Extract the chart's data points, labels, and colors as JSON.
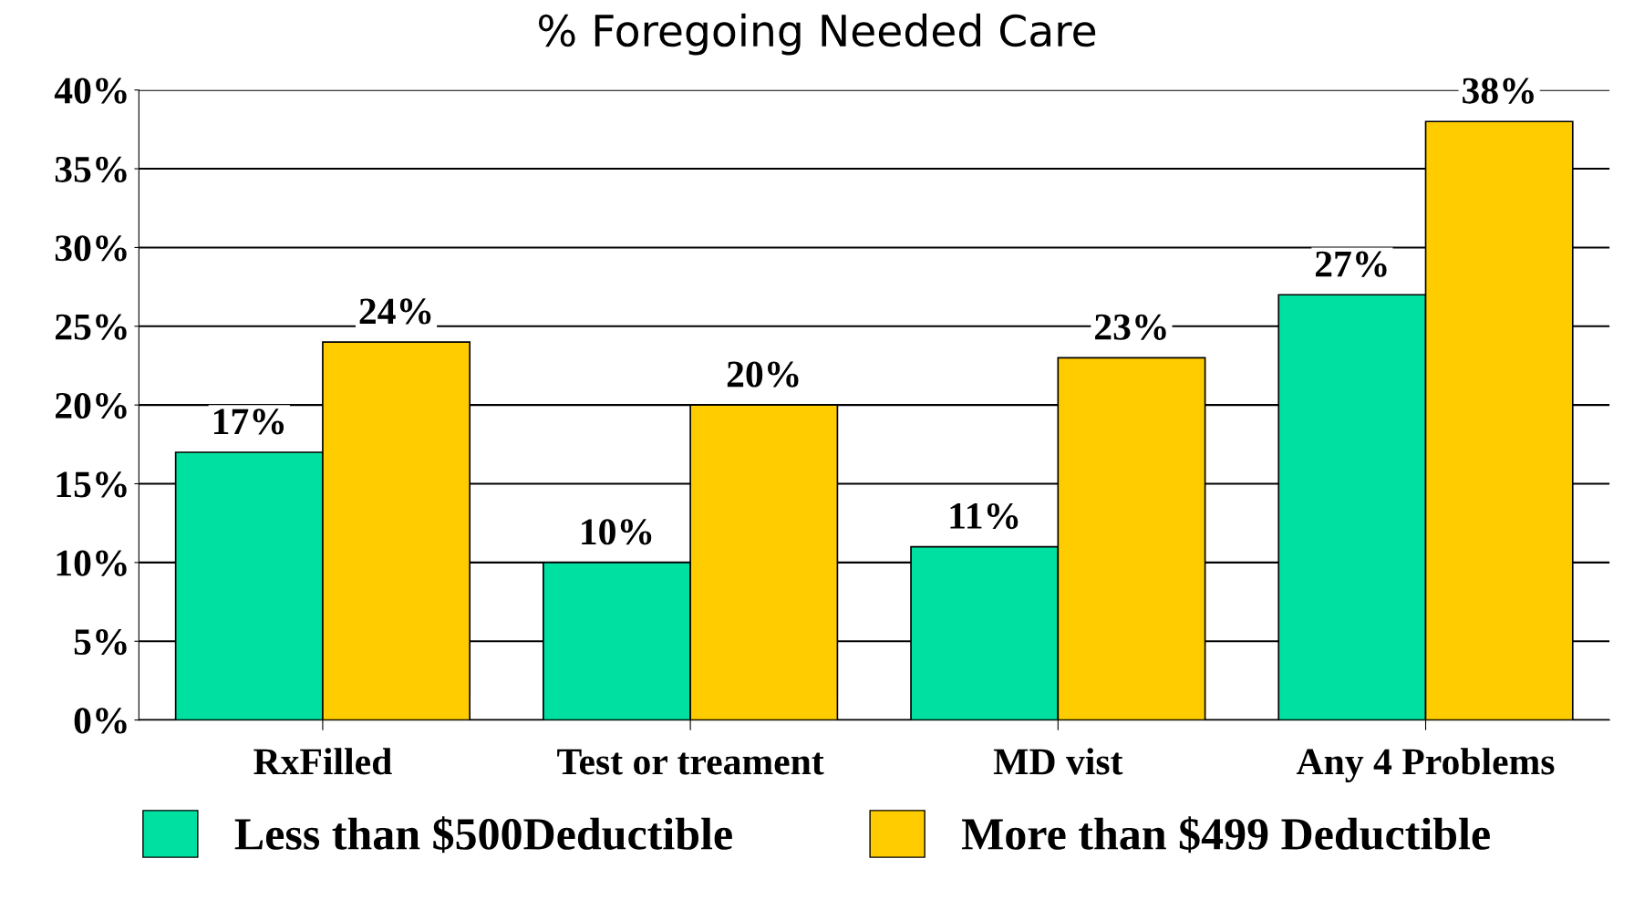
{
  "chart_data": {
    "type": "bar",
    "title": "% Foregoing Needed Care",
    "categories": [
      "RxFilled",
      "Test or treament",
      "MD vist",
      "Any 4 Problems"
    ],
    "series": [
      {
        "name": "Less than $500Deductible",
        "color": "#00e0a0",
        "values": [
          17,
          10,
          11,
          27
        ]
      },
      {
        "name": "More than $499 Deductible",
        "color": "#ffcc00",
        "values": [
          24,
          20,
          23,
          38
        ]
      }
    ],
    "ylim": [
      0,
      40
    ],
    "yticks": [
      {
        "value": 0,
        "label": "0%"
      },
      {
        "value": 5,
        "label": "5%"
      },
      {
        "value": 10,
        "label": "10%"
      },
      {
        "value": 15,
        "label": "15%"
      },
      {
        "value": 20,
        "label": "20%"
      },
      {
        "value": 25,
        "label": "25%"
      },
      {
        "value": 30,
        "label": "30%"
      },
      {
        "value": 35,
        "label": "35%"
      },
      {
        "value": 40,
        "label": "40%"
      }
    ],
    "value_labels": [
      [
        "17%",
        "10%",
        "11%",
        "27%"
      ],
      [
        "24%",
        "20%",
        "23%",
        "38%"
      ]
    ],
    "grid": "y",
    "legend": "bottom"
  }
}
